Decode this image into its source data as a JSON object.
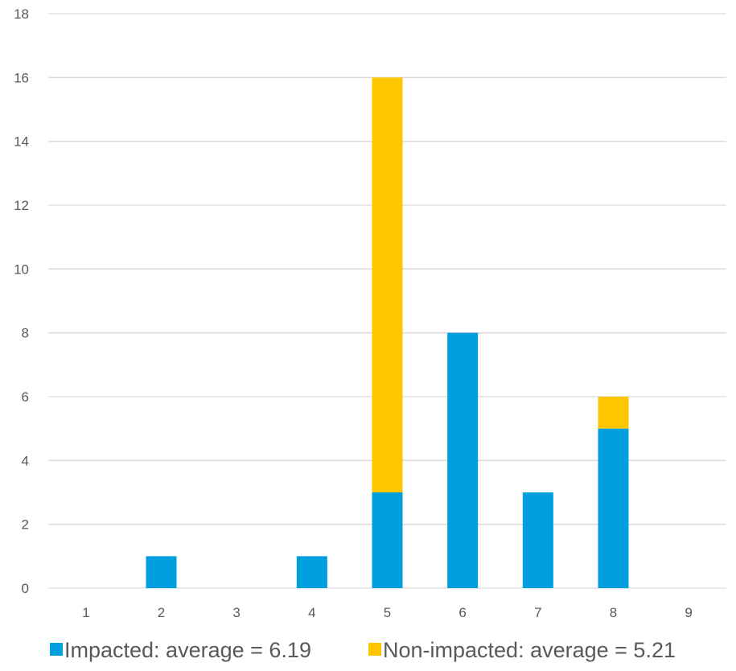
{
  "chart_data": {
    "type": "bar",
    "stacked": true,
    "categories": [
      "1",
      "2",
      "3",
      "4",
      "5",
      "6",
      "7",
      "8",
      "9"
    ],
    "series": [
      {
        "name": "Impacted: average = 6.19",
        "color": "#009FDF",
        "values": [
          0,
          1,
          0,
          1,
          3,
          8,
          3,
          5,
          0
        ]
      },
      {
        "name": "Non-impacted: average = 5.21",
        "color": "#FFC600",
        "values": [
          0,
          0,
          0,
          0,
          13,
          0,
          0,
          1,
          0
        ]
      }
    ],
    "ylim": [
      0,
      18
    ],
    "yticks": [
      "0",
      "2",
      "4",
      "6",
      "8",
      "10",
      "12",
      "14",
      "16",
      "18"
    ],
    "grid": true,
    "legend_position": "bottom",
    "gridline_color": "#D9D9D9"
  }
}
